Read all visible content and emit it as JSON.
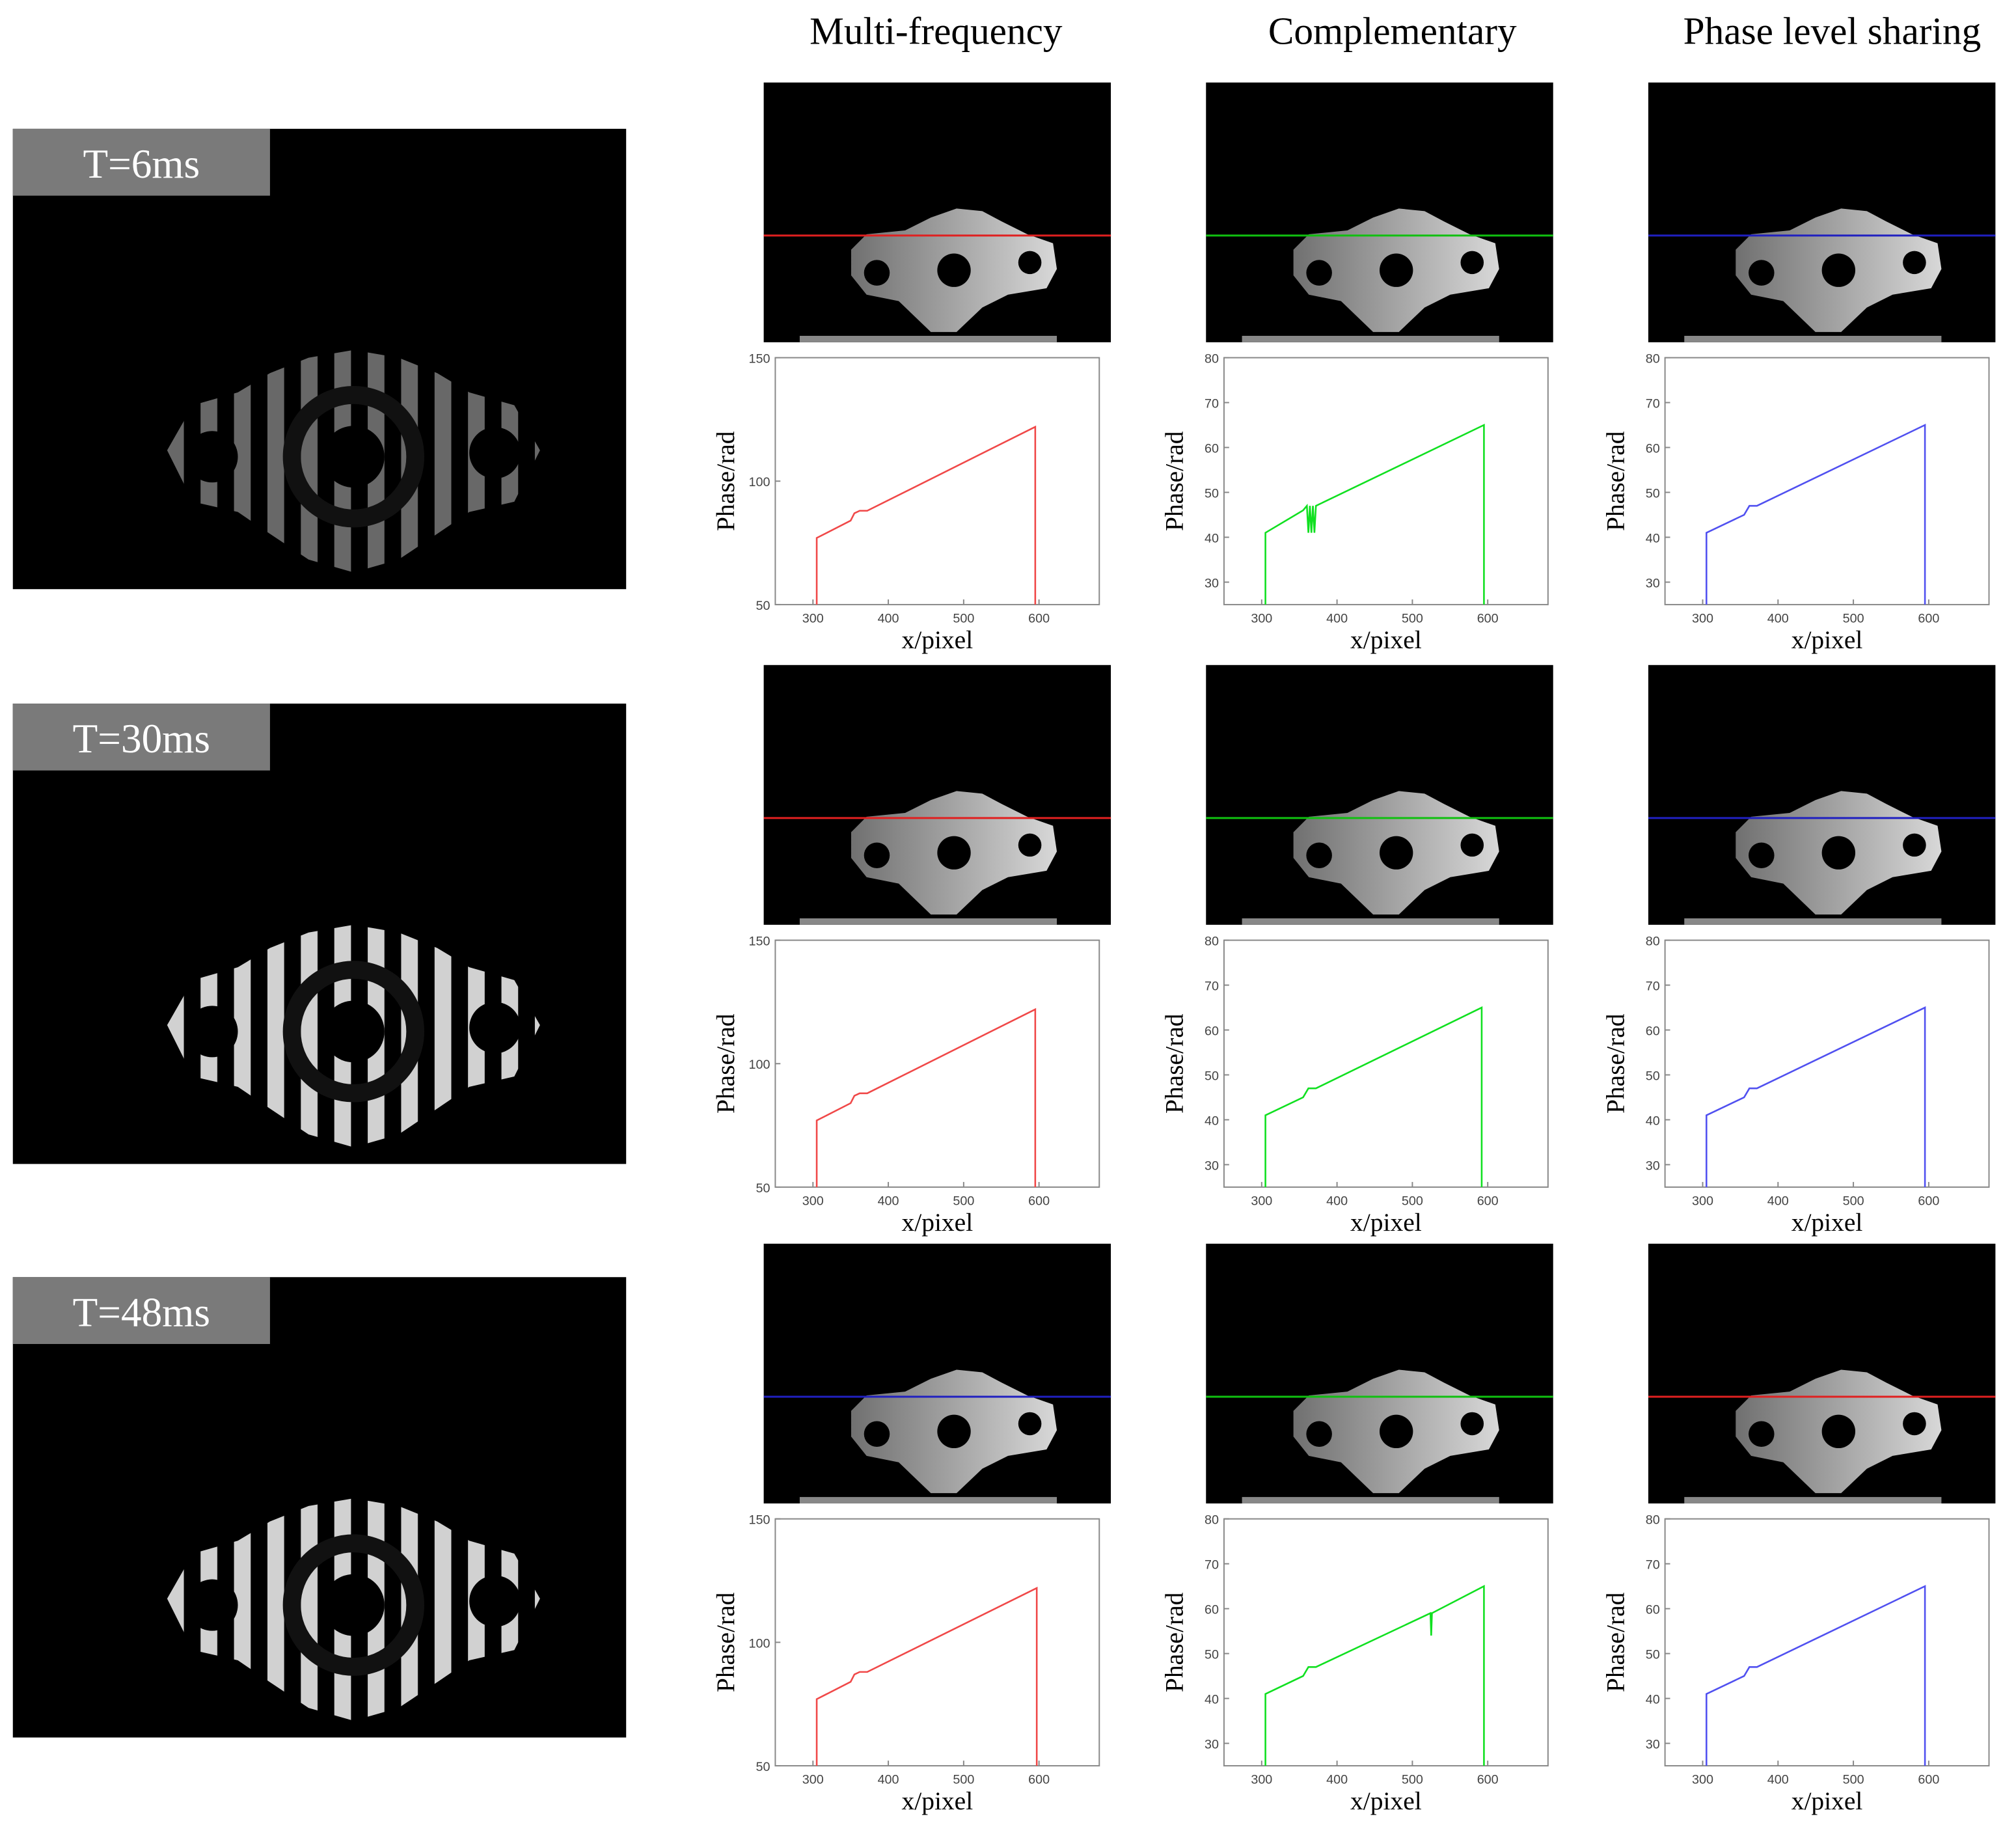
{
  "columns": [
    "Multi-frequency",
    "Complementary",
    "Phase level sharing"
  ],
  "rows": [
    "T=6ms",
    "T=30ms",
    "T=48ms"
  ],
  "chart_data": [
    {
      "type": "line",
      "xlabel": "x/pixel",
      "ylabel": "Phase/rad",
      "xlim": [
        250,
        680
      ],
      "xticks": [
        300,
        400,
        500,
        600
      ],
      "ylim": [
        50,
        150
      ],
      "yticks": [
        50,
        100,
        150
      ],
      "scan_color": "#e02020",
      "series": [
        {
          "color": "#f04848",
          "x": [
            305,
            305,
            350,
            355,
            362,
            372,
            595,
            595
          ],
          "values": [
            50,
            77,
            84,
            87,
            88,
            88,
            122,
            50
          ]
        }
      ]
    },
    {
      "type": "line",
      "xlabel": "x/pixel",
      "ylabel": "Phase/rad",
      "xlim": [
        250,
        680
      ],
      "xticks": [
        300,
        400,
        500,
        600
      ],
      "ylim": [
        25,
        80
      ],
      "yticks": [
        30,
        40,
        50,
        60,
        70,
        80
      ],
      "scan_color": "#10c010",
      "series": [
        {
          "color": "#10e020",
          "x": [
            305,
            305,
            355,
            360,
            362,
            364,
            366,
            368,
            370,
            372,
            595,
            595
          ],
          "values": [
            25,
            41,
            46,
            47,
            41,
            47,
            41,
            47,
            41,
            47,
            65,
            25
          ]
        }
      ]
    },
    {
      "type": "line",
      "xlabel": "x/pixel",
      "ylabel": "Phase/rad",
      "xlim": [
        250,
        680
      ],
      "xticks": [
        300,
        400,
        500,
        600
      ],
      "ylim": [
        25,
        80
      ],
      "yticks": [
        30,
        40,
        50,
        60,
        70,
        80
      ],
      "scan_color": "#2020c0",
      "series": [
        {
          "color": "#5050f0",
          "x": [
            305,
            305,
            355,
            362,
            372,
            595,
            595
          ],
          "values": [
            25,
            41,
            45,
            47,
            47,
            65,
            25
          ]
        }
      ]
    },
    {
      "type": "line",
      "xlabel": "x/pixel",
      "ylabel": "Phase/rad",
      "xlim": [
        250,
        680
      ],
      "xticks": [
        300,
        400,
        500,
        600
      ],
      "ylim": [
        50,
        150
      ],
      "yticks": [
        50,
        100,
        150
      ],
      "scan_color": "#e02020",
      "series": [
        {
          "color": "#f04848",
          "x": [
            305,
            305,
            350,
            355,
            362,
            372,
            595,
            595
          ],
          "values": [
            50,
            77,
            84,
            87,
            88,
            88,
            122,
            50
          ]
        }
      ]
    },
    {
      "type": "line",
      "xlabel": "x/pixel",
      "ylabel": "Phase/rad",
      "xlim": [
        250,
        680
      ],
      "xticks": [
        300,
        400,
        500,
        600
      ],
      "ylim": [
        25,
        80
      ],
      "yticks": [
        30,
        40,
        50,
        60,
        70,
        80
      ],
      "scan_color": "#10c010",
      "series": [
        {
          "color": "#10e020",
          "x": [
            305,
            305,
            355,
            362,
            372,
            592,
            592
          ],
          "values": [
            25,
            41,
            45,
            47,
            47,
            65,
            25
          ]
        }
      ]
    },
    {
      "type": "line",
      "xlabel": "x/pixel",
      "ylabel": "Phase/rad",
      "xlim": [
        250,
        680
      ],
      "xticks": [
        300,
        400,
        500,
        600
      ],
      "ylim": [
        25,
        80
      ],
      "yticks": [
        30,
        40,
        50,
        60,
        70,
        80
      ],
      "scan_color": "#2020c0",
      "series": [
        {
          "color": "#5050f0",
          "x": [
            305,
            305,
            355,
            362,
            372,
            595,
            595
          ],
          "values": [
            25,
            41,
            45,
            47,
            47,
            65,
            25
          ]
        }
      ]
    },
    {
      "type": "line",
      "xlabel": "x/pixel",
      "ylabel": "Phase/rad",
      "xlim": [
        250,
        680
      ],
      "xticks": [
        300,
        400,
        500,
        600
      ],
      "ylim": [
        50,
        150
      ],
      "yticks": [
        50,
        100,
        150
      ],
      "scan_color": "#2020c0",
      "series": [
        {
          "color": "#f04848",
          "x": [
            305,
            305,
            350,
            355,
            362,
            372,
            597,
            597
          ],
          "values": [
            50,
            77,
            84,
            87,
            88,
            88,
            122,
            50
          ]
        }
      ]
    },
    {
      "type": "line",
      "xlabel": "x/pixel",
      "ylabel": "Phase/rad",
      "xlim": [
        250,
        680
      ],
      "xticks": [
        300,
        400,
        500,
        600
      ],
      "ylim": [
        25,
        80
      ],
      "yticks": [
        30,
        40,
        50,
        60,
        70,
        80
      ],
      "scan_color": "#10c010",
      "series": [
        {
          "color": "#10e020",
          "x": [
            305,
            305,
            355,
            362,
            372,
            524,
            525,
            526,
            595,
            595
          ],
          "values": [
            25,
            41,
            45,
            47,
            47,
            59,
            54,
            59,
            65,
            25
          ]
        }
      ]
    },
    {
      "type": "line",
      "xlabel": "x/pixel",
      "ylabel": "Phase/rad",
      "xlim": [
        250,
        680
      ],
      "xticks": [
        300,
        400,
        500,
        600
      ],
      "ylim": [
        25,
        80
      ],
      "yticks": [
        30,
        40,
        50,
        60,
        70,
        80
      ],
      "scan_color": "#e02020",
      "series": [
        {
          "color": "#5050f0",
          "x": [
            305,
            305,
            355,
            362,
            372,
            595,
            595
          ],
          "values": [
            25,
            41,
            45,
            47,
            47,
            65,
            25
          ]
        }
      ]
    }
  ]
}
